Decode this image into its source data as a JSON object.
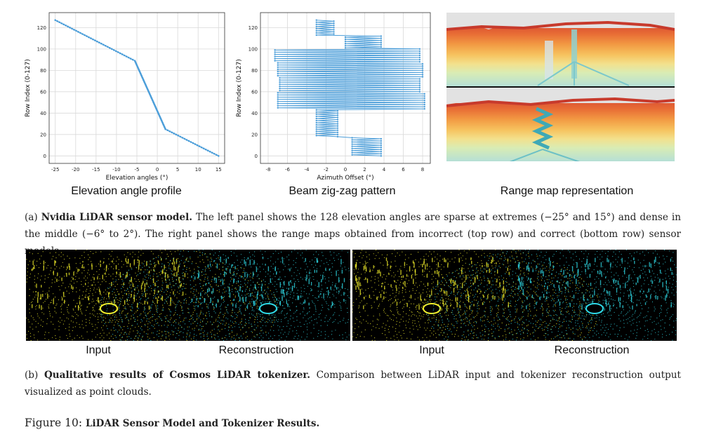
{
  "panel_a": {
    "charts": [
      {
        "type": "line",
        "xlabel": "Elevation angles (°)",
        "ylabel": "Row Index (0-127)",
        "xlim": [
          -26.5,
          16.5
        ],
        "ylim": [
          -7,
          134
        ],
        "xticks": [
          -25,
          -20,
          -15,
          -10,
          -5,
          0,
          5,
          10,
          15
        ],
        "yticks": [
          0,
          20,
          40,
          60,
          80,
          100,
          120
        ],
        "marker_color": "#4c9ed9",
        "grid": true,
        "series": [
          {
            "points": [
              [
                -25,
                127
              ],
              [
                -5.5,
                89
              ],
              [
                2,
                25
              ],
              [
                15,
                0
              ]
            ]
          }
        ],
        "subtitle": "Elevation angle profile"
      },
      {
        "type": "line",
        "xlabel": "Azimuth Offset (°)",
        "ylabel": "Row Index (0-127)",
        "xlim": [
          -8.8,
          8.8
        ],
        "ylim": [
          -7,
          134
        ],
        "xticks": [
          -8,
          -6,
          -4,
          -2,
          0,
          2,
          4,
          6,
          8
        ],
        "yticks": [
          0,
          20,
          40,
          60,
          80,
          100,
          120
        ],
        "marker_color": "#4c9ed9",
        "grid": true,
        "pattern": "zig-zag",
        "subtitle": "Beam zig-zag pattern"
      }
    ],
    "range_map_subtitle": "Range map representation",
    "caption": {
      "prefix": "(a) ",
      "bold": "Nvidia LiDAR sensor model.",
      "text": " The left panel shows the 128 elevation angles are sparse at extremes (−25° and 15°) and dense in the middle (−6° to 2°). The right panel shows the range maps obtained from incorrect (top row) and correct (bottom row) sensor models."
    }
  },
  "panel_b": {
    "labels": [
      "Input",
      "Reconstruction",
      "Input",
      "Reconstruction"
    ],
    "input_color": "#f2ee2a",
    "reconstruction_color": "#2fd9e6",
    "caption": {
      "prefix": "(b) ",
      "bold": "Qualitative results of Cosmos LiDAR tokenizer.",
      "text": " Comparison between LiDAR input and tokenizer reconstruction output visualized as point clouds."
    }
  },
  "figure": {
    "number": "Figure 10: ",
    "title": "LiDAR Sensor Model and Tokenizer Results."
  }
}
